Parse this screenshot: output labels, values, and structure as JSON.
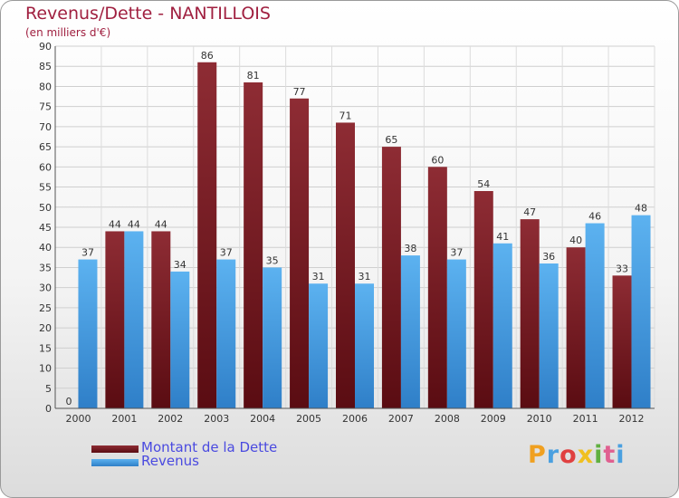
{
  "chart_data": {
    "type": "bar",
    "title": "Revenus/Dette - NANTILLOIS",
    "subtitle": "(en milliers d'€)",
    "categories": [
      "2000",
      "2001",
      "2002",
      "2003",
      "2004",
      "2005",
      "2006",
      "2007",
      "2008",
      "2009",
      "2010",
      "2011",
      "2012"
    ],
    "series": [
      {
        "name": "Montant de la Dette",
        "color": "#7a1a22",
        "values": [
          0,
          44,
          44,
          86,
          81,
          77,
          71,
          65,
          60,
          54,
          47,
          40,
          33
        ]
      },
      {
        "name": "Revenus",
        "color": "#4aa3e8",
        "values": [
          37,
          44,
          34,
          37,
          35,
          31,
          31,
          38,
          37,
          41,
          36,
          46,
          48
        ]
      }
    ],
    "ylim": [
      0,
      90
    ],
    "yticks": [
      0,
      5,
      10,
      15,
      20,
      25,
      30,
      35,
      40,
      45,
      50,
      55,
      60,
      65,
      70,
      75,
      80,
      85,
      90
    ],
    "grid": true,
    "legend_position": "bottom-left"
  },
  "brand": {
    "letters": [
      "P",
      "r",
      "o",
      "x",
      "i",
      "t",
      "i"
    ],
    "colors": [
      "#f0a020",
      "#4aa0e0",
      "#e04040",
      "#f0c020",
      "#60b040",
      "#e06090",
      "#4aa0e0"
    ]
  }
}
